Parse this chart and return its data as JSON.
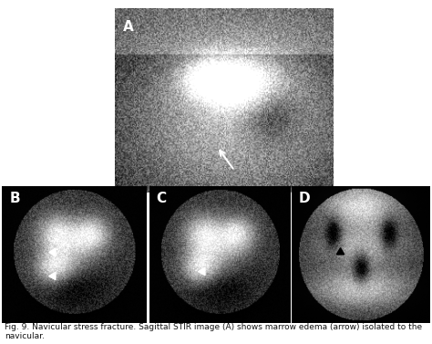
{
  "bg_color": "#ffffff",
  "figure_bg": "#ffffff",
  "panel_bg": "#000000",
  "label_color": "#ffffff",
  "label_fontsize": 11,
  "label_weight": "bold",
  "caption": "Fig. 9. Navicular stress fracture. Sagittal STIR image (A) shows marrow edema (arrow) isolated to the navicular.",
  "caption_fontsize": 6.5,
  "caption_color": "#111111",
  "panels": [
    "A",
    "B",
    "C",
    "D"
  ],
  "arrow_color": "#ffffff",
  "arrowhead_color": "#ffffff",
  "seed_A": 42,
  "seed_B": 123,
  "seed_C": 456,
  "seed_D": 789
}
